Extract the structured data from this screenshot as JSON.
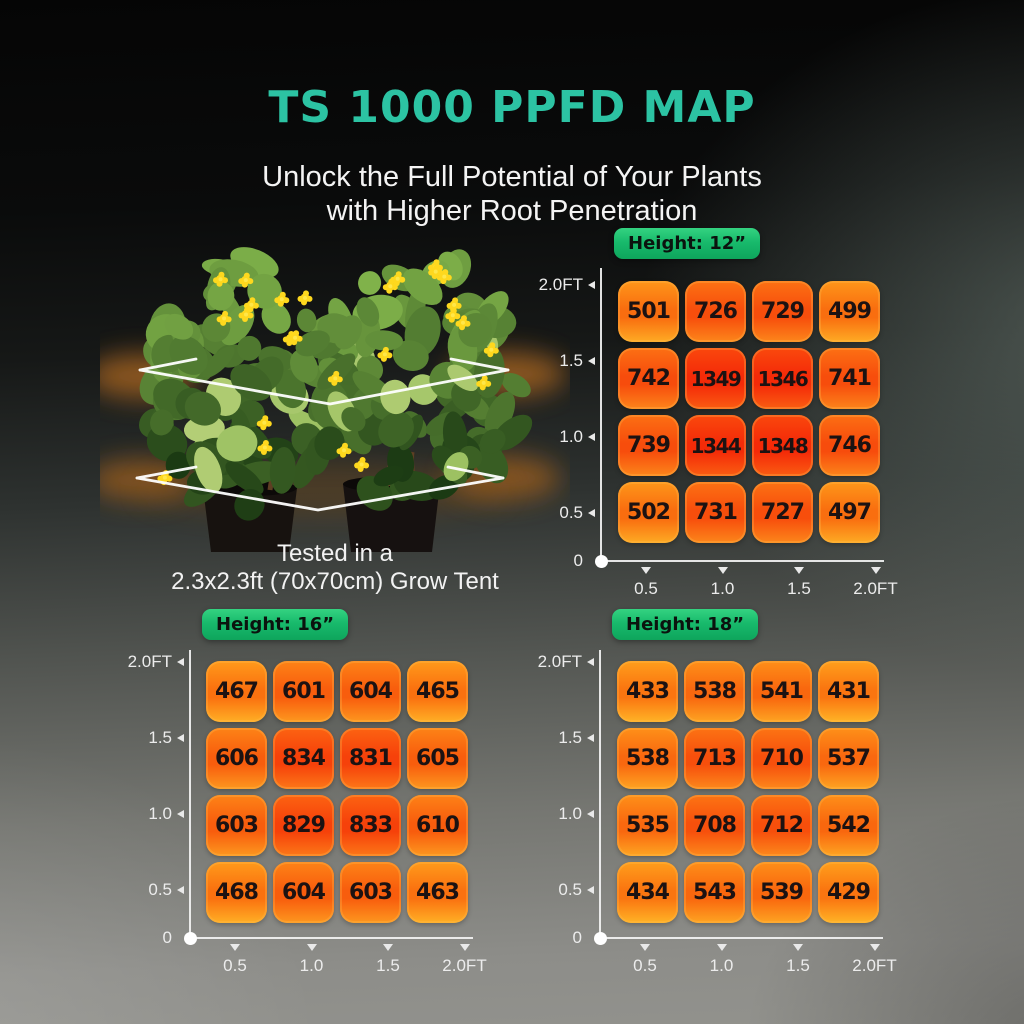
{
  "page": {
    "title": "TS 1000 PPFD MAP",
    "subtitle_line1": "Unlock the Full Potential of Your Plants",
    "subtitle_line2": "with Higher Root Penetration",
    "plant_caption_line1": "Tested in a",
    "plant_caption_line2": "2.3x2.3ft (70x70cm) Grow Tent"
  },
  "colors": {
    "title_teal": "#2CC3A3",
    "badge_green": "#14B169",
    "cell_orange_low": "#FA7610",
    "cell_red_high": "#F42C08",
    "cell_bottom_glow": "#FFB526",
    "axis_white": "#ECECEC",
    "cell_value_text": "#1C1212"
  },
  "chart_data": [
    {
      "type": "heatmap",
      "label": "Height: 12”",
      "x_ticks": [
        "0.5",
        "1.0",
        "1.5",
        "2.0FT"
      ],
      "y_ticks": [
        "2.0FT",
        "1.5",
        "1.0",
        "0.5",
        "0"
      ],
      "values": [
        [
          501,
          726,
          729,
          499
        ],
        [
          742,
          1349,
          1346,
          741
        ],
        [
          739,
          1344,
          1348,
          746
        ],
        [
          502,
          731,
          727,
          497
        ]
      ]
    },
    {
      "type": "heatmap",
      "label": "Height: 16”",
      "x_ticks": [
        "0.5",
        "1.0",
        "1.5",
        "2.0FT"
      ],
      "y_ticks": [
        "2.0FT",
        "1.5",
        "1.0",
        "0.5",
        "0"
      ],
      "values": [
        [
          467,
          601,
          604,
          465
        ],
        [
          606,
          834,
          831,
          605
        ],
        [
          603,
          829,
          833,
          610
        ],
        [
          468,
          604,
          603,
          463
        ]
      ]
    },
    {
      "type": "heatmap",
      "label": "Height: 18”",
      "x_ticks": [
        "0.5",
        "1.0",
        "1.5",
        "2.0FT"
      ],
      "y_ticks": [
        "2.0FT",
        "1.5",
        "1.0",
        "0.5",
        "0"
      ],
      "values": [
        [
          433,
          538,
          541,
          431
        ],
        [
          538,
          713,
          710,
          537
        ],
        [
          535,
          708,
          712,
          542
        ],
        [
          434,
          543,
          539,
          429
        ]
      ]
    }
  ]
}
